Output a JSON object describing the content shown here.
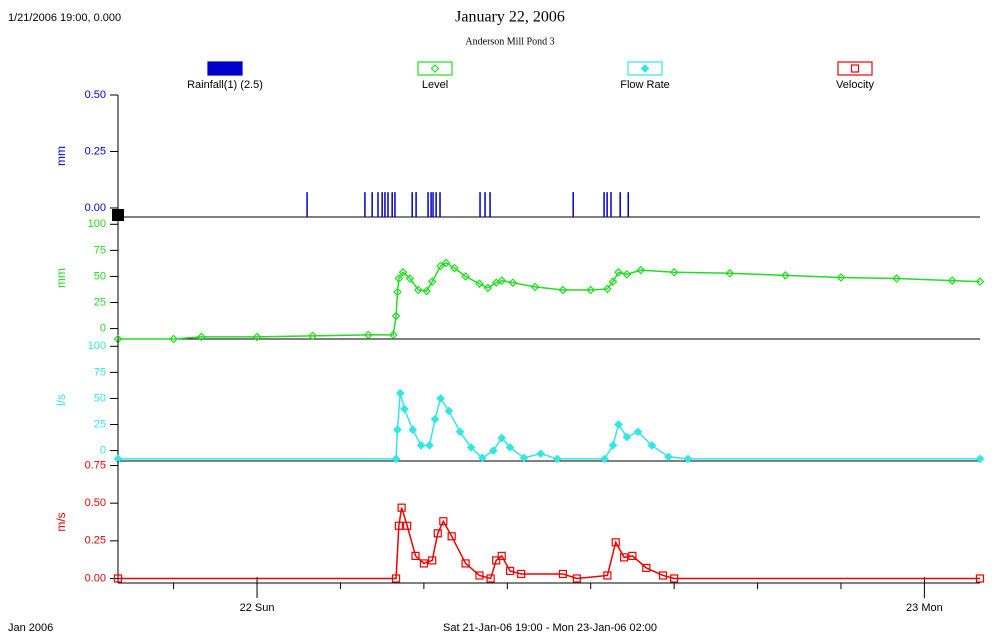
{
  "header": {
    "cursor": "1/21/2006 19:00, 0.000",
    "title": "January 22, 2006",
    "subtitle": "Anderson Mill Pond 3"
  },
  "footer": {
    "left": "Jan 2006",
    "range": "Sat 21-Jan-06 19:00 - Mon 23-Jan-06 02:00"
  },
  "chart_data": [
    {
      "type": "bar",
      "y_label": "mm",
      "xlim": [
        0,
        31
      ],
      "ylim": [
        -0.04,
        0.5
      ],
      "yticks": [
        {
          "value": 0.5,
          "label": "0.50"
        },
        {
          "value": 0.25,
          "label": "0.25"
        },
        {
          "value": 0,
          "label": "0.00"
        }
      ],
      "series": [
        {
          "name": "Rainfall(1) (2.5)",
          "color": "#0000cc",
          "marker": "bar",
          "x": [
            6.8,
            8.88,
            9.14,
            9.35,
            9.5,
            9.6,
            9.71,
            9.86,
            9.96,
            10.58,
            10.72,
            11.15,
            11.26,
            11.33,
            11.44,
            11.58,
            13.02,
            13.2,
            13.38,
            16.37,
            17.48,
            17.59,
            17.73,
            18.06,
            18.35
          ],
          "values": [
            0.07,
            0.07,
            0.07,
            0.07,
            0.07,
            0.07,
            0.07,
            0.07,
            0.07,
            0.07,
            0.07,
            0.07,
            0.07,
            0.07,
            0.07,
            0.07,
            0.07,
            0.07,
            0.07,
            0.07,
            0.07,
            0.07,
            0.07,
            0.07,
            0.07
          ]
        }
      ]
    },
    {
      "type": "line",
      "y_label": "mm",
      "xlim": [
        0,
        31
      ],
      "ylim": [
        -10,
        107
      ],
      "yticks": [
        100,
        75,
        50,
        25,
        0
      ],
      "series": [
        {
          "name": "Level",
          "color": "#22dd22",
          "marker": "diamond-open",
          "x": [
            0,
            2,
            3,
            5,
            7,
            9,
            9.9,
            10.0,
            10.05,
            10.1,
            10.25,
            10.5,
            10.8,
            11.1,
            11.3,
            11.6,
            11.8,
            12.1,
            12.5,
            13.0,
            13.3,
            13.6,
            13.8,
            14.2,
            15,
            16,
            17,
            17.6,
            17.8,
            18.0,
            18.3,
            18.8,
            20,
            22,
            24,
            26,
            28,
            30,
            31
          ],
          "values": [
            -10,
            -10,
            -8,
            -8,
            -7,
            -6,
            -6,
            12,
            35,
            48,
            54,
            48,
            37,
            36,
            45,
            60,
            63,
            58,
            50,
            43,
            39,
            44,
            46,
            44,
            40,
            37,
            37,
            38,
            45,
            54,
            52,
            56,
            54,
            53,
            51,
            49,
            48,
            46,
            45
          ]
        }
      ]
    },
    {
      "type": "line",
      "y_label": "l/s",
      "xlim": [
        0,
        31
      ],
      "ylim": [
        -10,
        107
      ],
      "yticks": [
        100,
        75,
        50,
        25,
        0
      ],
      "series": [
        {
          "name": "Flow Rate",
          "color": "#33e6e6",
          "marker": "diamond",
          "x": [
            0,
            10.0,
            10.05,
            10.15,
            10.3,
            10.6,
            10.9,
            11.2,
            11.4,
            11.6,
            11.9,
            12.3,
            12.7,
            13.1,
            13.5,
            13.8,
            14.1,
            14.6,
            15.2,
            15.8,
            17.5,
            17.8,
            18.0,
            18.3,
            18.7,
            19.2,
            19.8,
            20.5,
            31
          ],
          "values": [
            -8,
            -8,
            20,
            55,
            40,
            20,
            5,
            5,
            30,
            50,
            38,
            18,
            3,
            -7,
            0,
            12,
            3,
            -7,
            -3,
            -8,
            -8,
            5,
            25,
            13,
            18,
            5,
            -6,
            -8,
            -8
          ]
        }
      ]
    },
    {
      "type": "line",
      "y_label": "m/s",
      "xlim": [
        0,
        31
      ],
      "ylim": [
        -0.03,
        0.78
      ],
      "yticks": [
        {
          "value": 0.75,
          "label": "0.75"
        },
        {
          "value": 0.5,
          "label": "0.50"
        },
        {
          "value": 0.25,
          "label": "0.25"
        },
        {
          "value": 0,
          "label": "0.00"
        }
      ],
      "xticks": [
        {
          "value": 5,
          "label": "22 Sun"
        },
        {
          "value": 29,
          "label": "23 Mon"
        }
      ],
      "xminor_ticks": [
        2,
        8,
        11,
        14,
        17,
        20,
        23,
        26
      ],
      "series": [
        {
          "name": "Velocity",
          "color": "#ee0000",
          "marker": "square-open",
          "x": [
            0,
            10.0,
            10.1,
            10.2,
            10.4,
            10.7,
            11.0,
            11.3,
            11.5,
            11.7,
            12.0,
            12.5,
            13.0,
            13.4,
            13.6,
            13.8,
            14.1,
            14.5,
            16,
            16.5,
            17.6,
            17.9,
            18.2,
            18.5,
            19,
            19.6,
            20,
            31
          ],
          "values": [
            0,
            0,
            0.35,
            0.47,
            0.35,
            0.15,
            0.1,
            0.12,
            0.3,
            0.38,
            0.28,
            0.1,
            0.02,
            0,
            0.12,
            0.15,
            0.05,
            0.03,
            0.03,
            0,
            0.02,
            0.24,
            0.14,
            0.15,
            0.07,
            0.02,
            0,
            0
          ]
        }
      ]
    }
  ]
}
